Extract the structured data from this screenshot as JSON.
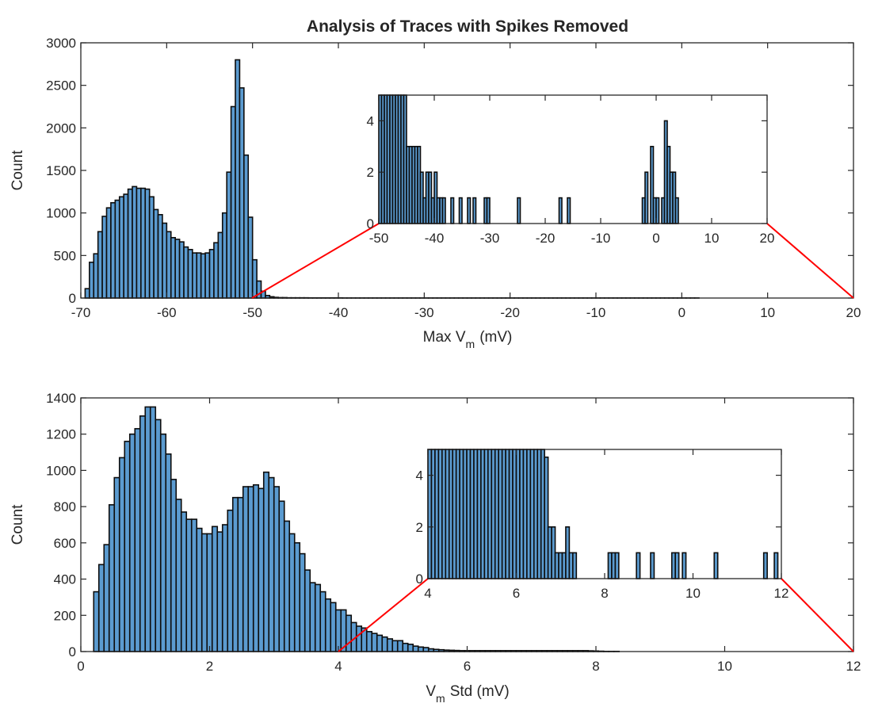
{
  "title": "Analysis of Traces with Spikes Removed",
  "colors": {
    "bar_fill": "#5b9bd0",
    "bar_edge": "#0d0d0d",
    "zoom_lines": "#ff0000",
    "axes": "#262626"
  },
  "chart_data": [
    {
      "type": "bar",
      "role": "main",
      "title": "Analysis of Traces with Spikes Removed",
      "xlabel_main": "Max V",
      "xlabel_sub": "m",
      "xlabel_unit": "(mV)",
      "ylabel": "Count",
      "xlim": [
        -70,
        20
      ],
      "ylim": [
        0,
        3000
      ],
      "xticks": [
        -70,
        -60,
        -50,
        -40,
        -30,
        -20,
        -10,
        0,
        10,
        20
      ],
      "yticks": [
        0,
        500,
        1000,
        1500,
        2000,
        2500,
        3000
      ],
      "grid": false,
      "bin_start": -69.5,
      "bin_width": 0.5,
      "values": [
        110,
        420,
        520,
        780,
        960,
        1060,
        1120,
        1150,
        1190,
        1220,
        1280,
        1310,
        1290,
        1290,
        1280,
        1190,
        1040,
        980,
        880,
        780,
        710,
        690,
        660,
        600,
        570,
        530,
        530,
        520,
        530,
        570,
        650,
        770,
        1000,
        1480,
        2250,
        2800,
        2470,
        1680,
        950,
        450,
        200,
        80,
        30,
        15,
        8,
        5,
        5,
        3,
        3,
        3,
        3,
        3,
        2,
        2,
        2,
        2,
        2,
        2,
        2,
        2,
        1,
        1,
        1,
        1,
        1,
        1,
        1,
        1,
        1,
        1,
        1,
        1,
        1,
        1,
        1,
        1,
        1,
        1,
        1,
        1,
        1,
        1,
        1,
        1,
        1,
        1,
        1,
        1,
        1,
        1,
        1,
        1,
        1,
        1,
        1,
        1,
        1,
        1,
        1,
        1,
        1,
        1,
        1,
        1,
        1,
        1,
        1,
        1,
        1,
        1,
        1,
        1,
        1,
        1,
        1,
        1,
        1,
        1,
        1,
        1,
        1,
        1,
        1,
        1,
        1,
        1,
        1,
        1,
        1,
        1,
        1,
        1,
        1,
        1,
        1,
        1,
        1,
        1,
        1,
        1,
        1,
        1,
        1
      ]
    },
    {
      "type": "bar",
      "role": "inset",
      "xlim": [
        -50,
        20
      ],
      "ylim": [
        0,
        5
      ],
      "xticks": [
        -50,
        -40,
        -30,
        -20,
        -10,
        0,
        10,
        20
      ],
      "yticks": [
        0,
        2,
        4
      ],
      "bin_start": -50,
      "bin_width": 0.5,
      "bars": [
        [
          -50,
          6
        ],
        [
          -49.5,
          6
        ],
        [
          -49,
          6
        ],
        [
          -48.5,
          6
        ],
        [
          -48,
          6
        ],
        [
          -47.5,
          6
        ],
        [
          -47,
          6
        ],
        [
          -46.5,
          6
        ],
        [
          -46,
          6
        ],
        [
          -45.5,
          6
        ],
        [
          -45,
          3
        ],
        [
          -44.5,
          3
        ],
        [
          -44,
          3
        ],
        [
          -43.5,
          3
        ],
        [
          -43,
          3
        ],
        [
          -42.5,
          2
        ],
        [
          -42,
          1
        ],
        [
          -41.5,
          2
        ],
        [
          -41,
          2
        ],
        [
          -40.5,
          1
        ],
        [
          -40,
          2
        ],
        [
          -39.5,
          1
        ],
        [
          -39,
          1
        ],
        [
          -38.5,
          1
        ],
        [
          -37,
          1
        ],
        [
          -35.5,
          1
        ],
        [
          -34,
          1
        ],
        [
          -33,
          1
        ],
        [
          -31,
          1
        ],
        [
          -30.5,
          1
        ],
        [
          -25,
          1
        ],
        [
          -17.5,
          1
        ],
        [
          -16,
          1
        ],
        [
          -2.5,
          1
        ],
        [
          -2,
          2
        ],
        [
          -1,
          3
        ],
        [
          -0.5,
          1
        ],
        [
          0,
          1
        ],
        [
          1,
          1
        ],
        [
          1.5,
          4
        ],
        [
          2,
          3
        ],
        [
          2.5,
          2
        ],
        [
          3,
          2
        ],
        [
          3.5,
          1
        ]
      ]
    },
    {
      "type": "bar",
      "role": "main",
      "xlabel_main": "V",
      "xlabel_sub": "m",
      "xlabel_unit": "Std (mV)",
      "ylabel": "Count",
      "xlim": [
        0,
        12
      ],
      "ylim": [
        0,
        1400
      ],
      "xticks": [
        0,
        2,
        4,
        6,
        8,
        10,
        12
      ],
      "yticks": [
        0,
        200,
        400,
        600,
        800,
        1000,
        1200,
        1400
      ],
      "grid": false,
      "bin_start": 0.2,
      "bin_width": 0.08,
      "values": [
        330,
        480,
        590,
        810,
        960,
        1070,
        1160,
        1200,
        1230,
        1300,
        1350,
        1350,
        1280,
        1200,
        1090,
        950,
        840,
        770,
        730,
        730,
        680,
        650,
        650,
        690,
        660,
        700,
        780,
        850,
        850,
        910,
        910,
        920,
        900,
        990,
        960,
        910,
        830,
        720,
        650,
        600,
        540,
        450,
        380,
        370,
        330,
        290,
        270,
        230,
        230,
        200,
        160,
        140,
        130,
        110,
        100,
        90,
        80,
        70,
        60,
        60,
        45,
        40,
        30,
        25,
        22,
        15,
        12,
        10,
        8,
        7,
        6,
        5,
        5,
        5,
        5,
        5,
        5,
        5,
        5,
        5,
        5,
        5,
        5,
        5,
        5,
        5,
        5,
        5,
        5,
        5,
        5,
        5,
        5,
        5,
        5,
        5,
        4,
        3,
        2,
        1,
        1,
        1,
        0,
        0,
        0,
        0,
        0,
        0,
        0,
        0,
        0,
        0,
        0,
        0,
        0,
        0,
        0,
        0,
        0,
        0,
        0,
        0,
        0,
        0,
        0,
        0,
        0,
        0,
        0,
        0,
        0,
        0,
        0,
        0,
        0,
        0,
        0,
        0,
        0,
        0,
        0,
        0,
        0,
        0,
        0,
        0
      ]
    },
    {
      "type": "bar",
      "role": "inset",
      "xlim": [
        4,
        12
      ],
      "ylim": [
        0,
        5
      ],
      "xticks": [
        4,
        6,
        8,
        10,
        12
      ],
      "yticks": [
        0,
        2,
        4
      ],
      "bin_start": 4,
      "bin_width": 0.08,
      "bars": [
        [
          4.0,
          6
        ],
        [
          4.08,
          6
        ],
        [
          4.16,
          6
        ],
        [
          4.24,
          6
        ],
        [
          4.32,
          6
        ],
        [
          4.4,
          6
        ],
        [
          4.48,
          6
        ],
        [
          4.56,
          6
        ],
        [
          4.64,
          6
        ],
        [
          4.72,
          6
        ],
        [
          4.8,
          6
        ],
        [
          4.88,
          6
        ],
        [
          4.96,
          6
        ],
        [
          5.04,
          6
        ],
        [
          5.12,
          6
        ],
        [
          5.2,
          6
        ],
        [
          5.28,
          6
        ],
        [
          5.36,
          6
        ],
        [
          5.44,
          6
        ],
        [
          5.52,
          6
        ],
        [
          5.6,
          6
        ],
        [
          5.68,
          6
        ],
        [
          5.76,
          6
        ],
        [
          5.84,
          6
        ],
        [
          5.92,
          6
        ],
        [
          6.0,
          6
        ],
        [
          6.08,
          6
        ],
        [
          6.16,
          6
        ],
        [
          6.24,
          6
        ],
        [
          6.32,
          6
        ],
        [
          6.4,
          6
        ],
        [
          6.48,
          6
        ],
        [
          6.56,
          6
        ],
        [
          6.64,
          4.7
        ],
        [
          6.72,
          2
        ],
        [
          6.8,
          2
        ],
        [
          6.88,
          1
        ],
        [
          6.96,
          1
        ],
        [
          7.04,
          1
        ],
        [
          7.12,
          2
        ],
        [
          7.2,
          1
        ],
        [
          7.28,
          1
        ],
        [
          8.08,
          1
        ],
        [
          8.16,
          1
        ],
        [
          8.24,
          1
        ],
        [
          8.72,
          1
        ],
        [
          9.04,
          1
        ],
        [
          9.52,
          1
        ],
        [
          9.6,
          1
        ],
        [
          9.76,
          1
        ],
        [
          10.48,
          1
        ],
        [
          11.6,
          1
        ],
        [
          11.84,
          1
        ]
      ]
    }
  ]
}
